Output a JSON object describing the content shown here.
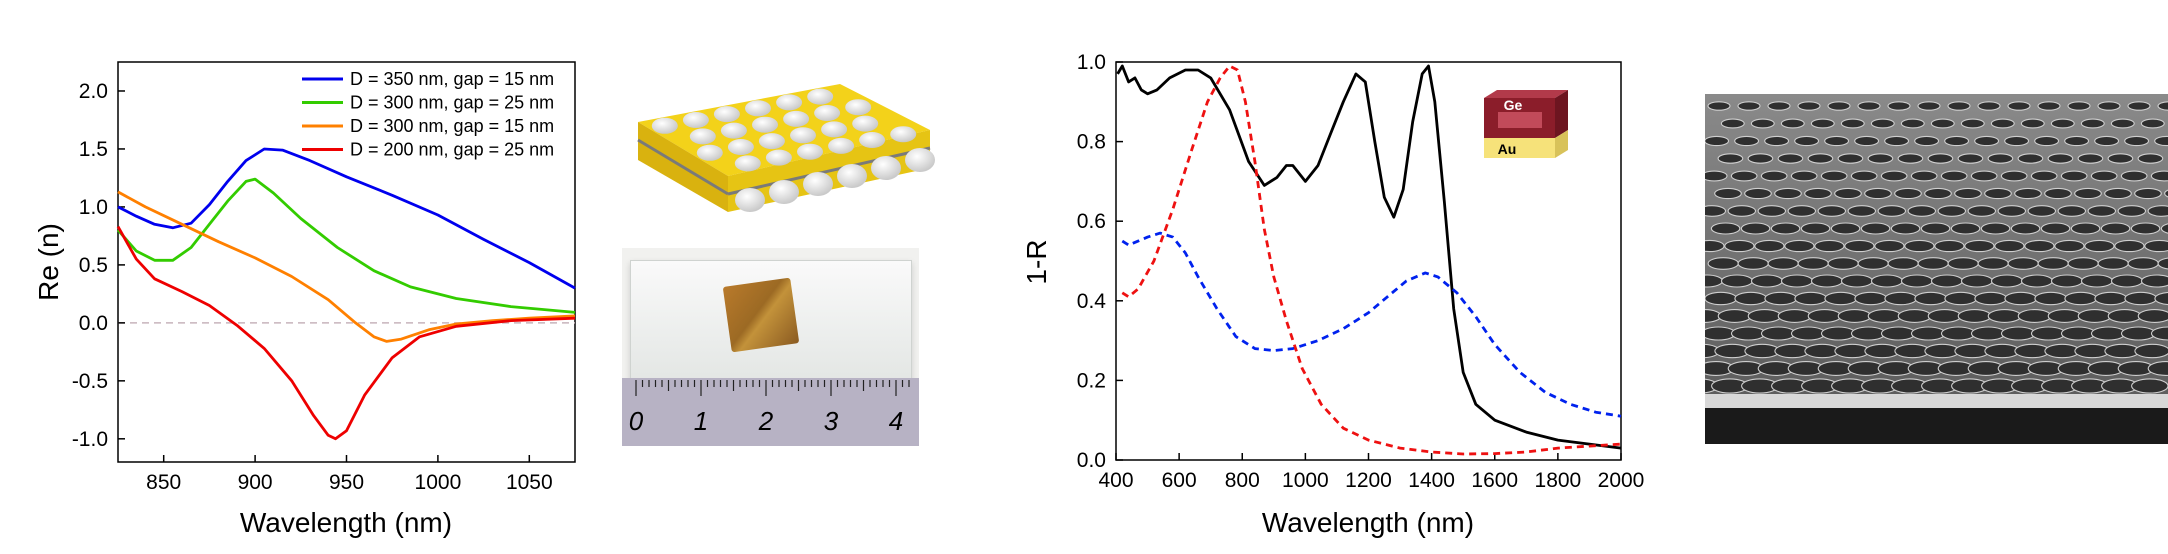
{
  "chart_data": [
    {
      "type": "line",
      "xlabel": "Wavelength (nm)",
      "ylabel": "Re (n)",
      "xlim": [
        825,
        1075
      ],
      "ylim": [
        -1.2,
        2.25
      ],
      "x_ticks": [
        850,
        900,
        950,
        1000,
        1050
      ],
      "y_ticks": [
        -1.0,
        -0.5,
        0.0,
        0.5,
        1.0,
        1.5,
        2.0
      ],
      "x_tick_labels": [
        "850",
        "900",
        "950",
        "1000",
        "1050"
      ],
      "y_tick_labels": [
        "-1.0",
        "-0.5",
        "0.0",
        "0.5",
        "1.0",
        "1.5",
        "2.0"
      ],
      "legend_position": "top-right",
      "reference_line": {
        "y": 0,
        "color": "#c8b4bc",
        "style": "dashed"
      },
      "series": [
        {
          "name": "D = 350 nm, gap = 15 nm",
          "color": "#0000ee",
          "points": [
            [
              825,
              1.0
            ],
            [
              835,
              0.92
            ],
            [
              845,
              0.85
            ],
            [
              855,
              0.82
            ],
            [
              865,
              0.86
            ],
            [
              875,
              1.02
            ],
            [
              885,
              1.22
            ],
            [
              895,
              1.4
            ],
            [
              905,
              1.5
            ],
            [
              915,
              1.49
            ],
            [
              930,
              1.4
            ],
            [
              950,
              1.26
            ],
            [
              975,
              1.1
            ],
            [
              1000,
              0.93
            ],
            [
              1025,
              0.72
            ],
            [
              1050,
              0.52
            ],
            [
              1075,
              0.3
            ]
          ]
        },
        {
          "name": "D = 300 nm, gap = 25 nm",
          "color": "#33cc00",
          "points": [
            [
              825,
              0.8
            ],
            [
              835,
              0.62
            ],
            [
              845,
              0.54
            ],
            [
              855,
              0.54
            ],
            [
              865,
              0.65
            ],
            [
              875,
              0.85
            ],
            [
              885,
              1.05
            ],
            [
              895,
              1.22
            ],
            [
              900,
              1.24
            ],
            [
              910,
              1.12
            ],
            [
              925,
              0.9
            ],
            [
              945,
              0.65
            ],
            [
              965,
              0.45
            ],
            [
              985,
              0.31
            ],
            [
              1010,
              0.21
            ],
            [
              1040,
              0.14
            ],
            [
              1075,
              0.09
            ]
          ]
        },
        {
          "name": "D = 300 nm, gap = 15 nm",
          "color": "#ff8000",
          "points": [
            [
              825,
              1.13
            ],
            [
              840,
              1.0
            ],
            [
              860,
              0.85
            ],
            [
              880,
              0.7
            ],
            [
              900,
              0.56
            ],
            [
              920,
              0.4
            ],
            [
              940,
              0.2
            ],
            [
              955,
              0.0
            ],
            [
              965,
              -0.12
            ],
            [
              972,
              -0.16
            ],
            [
              980,
              -0.14
            ],
            [
              995,
              -0.06
            ],
            [
              1010,
              -0.01
            ],
            [
              1030,
              0.02
            ],
            [
              1050,
              0.04
            ],
            [
              1075,
              0.06
            ]
          ]
        },
        {
          "name": "D = 200 nm, gap = 25 nm",
          "color": "#ee0000",
          "points": [
            [
              825,
              0.83
            ],
            [
              835,
              0.55
            ],
            [
              845,
              0.38
            ],
            [
              860,
              0.27
            ],
            [
              875,
              0.15
            ],
            [
              890,
              -0.02
            ],
            [
              905,
              -0.22
            ],
            [
              920,
              -0.5
            ],
            [
              932,
              -0.8
            ],
            [
              940,
              -0.97
            ],
            [
              944,
              -1.0
            ],
            [
              950,
              -0.93
            ],
            [
              960,
              -0.62
            ],
            [
              975,
              -0.3
            ],
            [
              990,
              -0.12
            ],
            [
              1010,
              -0.03
            ],
            [
              1040,
              0.02
            ],
            [
              1075,
              0.04
            ]
          ]
        }
      ]
    },
    {
      "type": "line",
      "xlabel": "Wavelength (nm)",
      "ylabel": "1-R",
      "xlim": [
        400,
        2000
      ],
      "ylim": [
        0.0,
        1.0
      ],
      "x_ticks": [
        400,
        600,
        800,
        1000,
        1200,
        1400,
        1600,
        1800,
        2000
      ],
      "y_ticks": [
        0.0,
        0.2,
        0.4,
        0.6,
        0.8,
        1.0
      ],
      "x_tick_labels": [
        "400",
        "600",
        "800",
        "1000",
        "1200",
        "1400",
        "1600",
        "1800",
        "2000"
      ],
      "y_tick_labels": [
        "0.0",
        "0.2",
        "0.4",
        "0.6",
        "0.8",
        "1.0"
      ],
      "legend": "none",
      "series": [
        {
          "color": "#000000",
          "style": "solid",
          "points": [
            [
              405,
              0.97
            ],
            [
              420,
              0.99
            ],
            [
              440,
              0.95
            ],
            [
              460,
              0.96
            ],
            [
              480,
              0.93
            ],
            [
              500,
              0.92
            ],
            [
              530,
              0.93
            ],
            [
              570,
              0.96
            ],
            [
              620,
              0.98
            ],
            [
              660,
              0.98
            ],
            [
              700,
              0.96
            ],
            [
              760,
              0.88
            ],
            [
              820,
              0.75
            ],
            [
              870,
              0.69
            ],
            [
              910,
              0.71
            ],
            [
              940,
              0.74
            ],
            [
              960,
              0.74
            ],
            [
              1000,
              0.7
            ],
            [
              1040,
              0.74
            ],
            [
              1080,
              0.82
            ],
            [
              1120,
              0.9
            ],
            [
              1160,
              0.97
            ],
            [
              1190,
              0.95
            ],
            [
              1220,
              0.8
            ],
            [
              1250,
              0.66
            ],
            [
              1280,
              0.61
            ],
            [
              1310,
              0.68
            ],
            [
              1340,
              0.85
            ],
            [
              1370,
              0.97
            ],
            [
              1390,
              0.99
            ],
            [
              1410,
              0.9
            ],
            [
              1440,
              0.65
            ],
            [
              1470,
              0.38
            ],
            [
              1500,
              0.22
            ],
            [
              1540,
              0.14
            ],
            [
              1600,
              0.1
            ],
            [
              1700,
              0.07
            ],
            [
              1800,
              0.05
            ],
            [
              1900,
              0.04
            ],
            [
              2000,
              0.03
            ]
          ]
        },
        {
          "color": "#0022ee",
          "style": "dashed",
          "points": [
            [
              420,
              0.55
            ],
            [
              440,
              0.54
            ],
            [
              470,
              0.55
            ],
            [
              500,
              0.56
            ],
            [
              540,
              0.57
            ],
            [
              580,
              0.56
            ],
            [
              620,
              0.52
            ],
            [
              660,
              0.46
            ],
            [
              720,
              0.38
            ],
            [
              780,
              0.31
            ],
            [
              840,
              0.28
            ],
            [
              900,
              0.275
            ],
            [
              960,
              0.28
            ],
            [
              1040,
              0.3
            ],
            [
              1120,
              0.33
            ],
            [
              1200,
              0.37
            ],
            [
              1260,
              0.41
            ],
            [
              1320,
              0.45
            ],
            [
              1380,
              0.47
            ],
            [
              1420,
              0.46
            ],
            [
              1480,
              0.42
            ],
            [
              1540,
              0.36
            ],
            [
              1600,
              0.29
            ],
            [
              1680,
              0.22
            ],
            [
              1760,
              0.17
            ],
            [
              1840,
              0.14
            ],
            [
              1920,
              0.12
            ],
            [
              2000,
              0.11
            ]
          ]
        },
        {
          "color": "#ee1111",
          "style": "dashed",
          "points": [
            [
              420,
              0.42
            ],
            [
              440,
              0.41
            ],
            [
              470,
              0.43
            ],
            [
              520,
              0.5
            ],
            [
              580,
              0.63
            ],
            [
              640,
              0.78
            ],
            [
              690,
              0.9
            ],
            [
              730,
              0.96
            ],
            [
              760,
              0.99
            ],
            [
              785,
              0.98
            ],
            [
              810,
              0.9
            ],
            [
              840,
              0.75
            ],
            [
              870,
              0.58
            ],
            [
              900,
              0.46
            ],
            [
              940,
              0.35
            ],
            [
              990,
              0.23
            ],
            [
              1050,
              0.14
            ],
            [
              1120,
              0.08
            ],
            [
              1200,
              0.05
            ],
            [
              1300,
              0.03
            ],
            [
              1400,
              0.02
            ],
            [
              1500,
              0.015
            ],
            [
              1600,
              0.016
            ],
            [
              1700,
              0.02
            ],
            [
              1800,
              0.03
            ],
            [
              1900,
              0.035
            ],
            [
              2000,
              0.04
            ]
          ]
        }
      ]
    }
  ],
  "inset": {
    "layer_top": "Ge",
    "layer_bottom": "Au"
  },
  "scale_bar": {
    "labels": [
      "0",
      "1",
      "2",
      "3",
      "4"
    ]
  },
  "colors": {
    "gold": "#f3d21a",
    "ge_layer": "#8b1d2a",
    "glass": "#e8ecea",
    "sem_bg": "#6e6e6e"
  }
}
